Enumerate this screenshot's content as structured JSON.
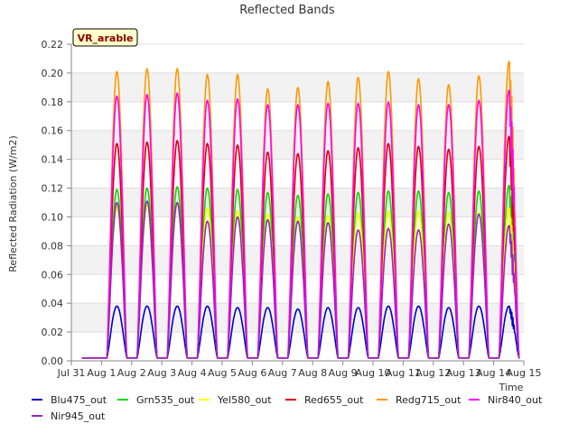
{
  "chart_data": {
    "type": "line",
    "title": "Reflected Bands",
    "xlabel": "Time",
    "ylabel": "Reflected Radiation (W/m2)",
    "site_label": "VR_arable",
    "ylim": [
      0,
      0.22
    ],
    "yticks": [
      "0.00",
      "0.02",
      "0.04",
      "0.06",
      "0.08",
      "0.10",
      "0.12",
      "0.14",
      "0.16",
      "0.18",
      "0.20",
      "0.22"
    ],
    "xlim": [
      "2024-07-31",
      "2024-08-15"
    ],
    "xticks": [
      "Jul 31",
      "Aug 1",
      "Aug 2",
      "Aug 3",
      "Aug 4",
      "Aug 5",
      "Aug 6",
      "Aug 7",
      "Aug 8",
      "Aug 9",
      "Aug 10",
      "Aug 11",
      "Aug 12",
      "Aug 13",
      "Aug 14",
      "Aug 15"
    ],
    "grid": "horizontal bands",
    "legend_position": "bottom",
    "days": [
      "Aug 1",
      "Aug 2",
      "Aug 3",
      "Aug 4",
      "Aug 5",
      "Aug 6",
      "Aug 7",
      "Aug 8",
      "Aug 9",
      "Aug 10",
      "Aug 11",
      "Aug 12",
      "Aug 13",
      "Aug 14"
    ],
    "night_value": 0.002,
    "series": [
      {
        "name": "Blu475_out",
        "color": "#0000cc",
        "daily_peaks": [
          0.038,
          0.038,
          0.038,
          0.038,
          0.037,
          0.037,
          0.036,
          0.037,
          0.037,
          0.038,
          0.038,
          0.037,
          0.038,
          0.038
        ]
      },
      {
        "name": "Grn535_out",
        "color": "#00dd00",
        "daily_peaks": [
          0.119,
          0.12,
          0.121,
          0.12,
          0.119,
          0.117,
          0.115,
          0.116,
          0.117,
          0.118,
          0.118,
          0.117,
          0.118,
          0.122
        ]
      },
      {
        "name": "Yel580_out",
        "color": "#ffff00",
        "daily_peaks": [
          0.107,
          0.108,
          0.109,
          0.106,
          0.104,
          0.102,
          0.1,
          0.101,
          0.103,
          0.104,
          0.104,
          0.103,
          0.103,
          0.106
        ]
      },
      {
        "name": "Red655_out",
        "color": "#dd0000",
        "daily_peaks": [
          0.151,
          0.152,
          0.153,
          0.151,
          0.15,
          0.145,
          0.144,
          0.146,
          0.148,
          0.151,
          0.149,
          0.147,
          0.149,
          0.156
        ]
      },
      {
        "name": "Redg715_out",
        "color": "#ff9900",
        "daily_peaks": [
          0.201,
          0.203,
          0.203,
          0.199,
          0.199,
          0.189,
          0.19,
          0.194,
          0.197,
          0.201,
          0.196,
          0.192,
          0.198,
          0.208
        ]
      },
      {
        "name": "Nir840_out",
        "color": "#ff00ff",
        "daily_peaks": [
          0.184,
          0.185,
          0.186,
          0.181,
          0.182,
          0.178,
          0.178,
          0.179,
          0.179,
          0.18,
          0.178,
          0.178,
          0.181,
          0.188
        ]
      },
      {
        "name": "Nir945_out",
        "color": "#9922cc",
        "daily_peaks": [
          0.11,
          0.111,
          0.11,
          0.097,
          0.1,
          0.098,
          0.097,
          0.096,
          0.091,
          0.092,
          0.091,
          0.095,
          0.102,
          0.094
        ]
      }
    ]
  }
}
